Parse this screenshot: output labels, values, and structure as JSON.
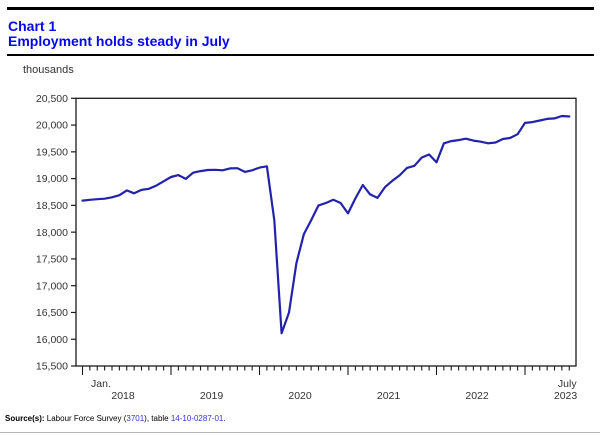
{
  "header": {
    "chart_label": "Chart 1",
    "chart_title": "Employment holds steady in July"
  },
  "colors": {
    "title_blue": "#0505f0",
    "link_blue": "#3333cc",
    "line_blue": "#2222aa",
    "axis_black": "#1a1a1a",
    "label_gray": "#333333"
  },
  "source": {
    "prefix": "Source(s):",
    "text_1": " Labour Force Survey (",
    "link_1": "3701",
    "text_2": "), table ",
    "link_2": "14-10-0287-01",
    "text_3": "."
  },
  "chart_data": {
    "type": "line",
    "title": "Employment holds steady in July",
    "ylabel": "thousands",
    "ylim": [
      15500,
      20500
    ],
    "grid": false,
    "legend": "none",
    "x_range": "January 2018 to July 2023, monthly",
    "y_ticks": {
      "values": [
        20500,
        20000,
        19500,
        19000,
        18500,
        18000,
        17500,
        17000,
        16500,
        16000,
        15500
      ],
      "labels": [
        "20,500",
        "20,000",
        "19,500",
        "19,000",
        "18,500",
        "18,000",
        "17,500",
        "17,000",
        "16,500",
        "16,000",
        "15,500"
      ]
    },
    "x_axis": {
      "first_tick_label": "Jan.",
      "last_tick_label": "July",
      "year_labels": [
        "2018",
        "2019",
        "2020",
        "2021",
        "2022",
        "2023"
      ]
    },
    "series": [
      {
        "name": "Employment",
        "unit": "thousands",
        "years": [
          {
            "year": "2018",
            "values": [
              18590,
              18605,
              18615,
              18625,
              18650,
              18690,
              18780,
              18725,
              18790,
              18810,
              18870,
              18950
            ]
          },
          {
            "year": "2019",
            "values": [
              19030,
              19065,
              18995,
              19110,
              19140,
              19160,
              19165,
              19155,
              19190,
              19195,
              19125,
              19155
            ]
          },
          {
            "year": "2020",
            "values": [
              19205,
              19230,
              18225,
              16110,
              16500,
              17420,
              17960,
              18220,
              18500,
              18545,
              18605,
              18545
            ]
          },
          {
            "year": "2021",
            "values": [
              18350,
              18630,
              18880,
              18705,
              18640,
              18840,
              18960,
              19060,
              19200,
              19240,
              19395,
              19450
            ]
          },
          {
            "year": "2022",
            "values": [
              19305,
              19660,
              19700,
              19720,
              19745,
              19710,
              19690,
              19660,
              19675,
              19740,
              19760,
              19830
            ]
          },
          {
            "year": "2023",
            "values": [
              20040,
              20055,
              20085,
              20115,
              20125,
              20170,
              20160
            ]
          }
        ]
      }
    ]
  }
}
